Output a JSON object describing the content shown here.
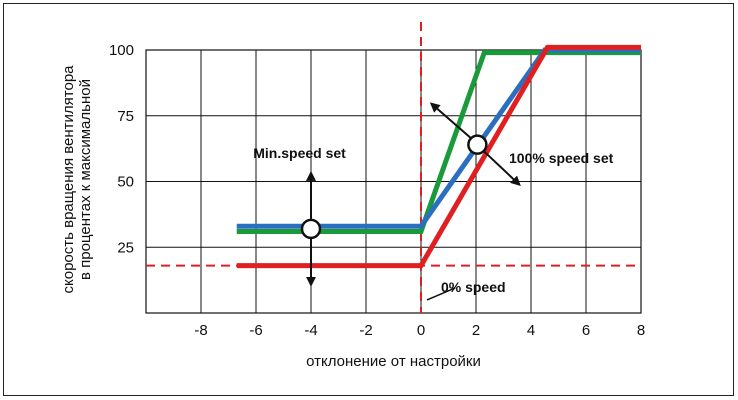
{
  "chart_data": {
    "type": "line",
    "xlabel": "отклонение от настройки",
    "ylabel_lines": [
      "скорость вращения вентилятора",
      "в процентах к максимальной"
    ],
    "xlim": [
      -10,
      8
    ],
    "ylim": [
      0,
      100
    ],
    "x_ticks": [
      -8,
      -6,
      -4,
      -2,
      0,
      2,
      4,
      6,
      8
    ],
    "y_ticks": [
      25,
      50,
      75,
      100
    ],
    "grid": true,
    "series": [
      {
        "color": "#1a9a3a",
        "points": [
          [
            -6.7,
            31
          ],
          [
            0,
            31
          ],
          [
            2.3,
            99
          ],
          [
            8,
            99
          ]
        ]
      },
      {
        "color": "#2a6fc0",
        "points": [
          [
            -6.7,
            33
          ],
          [
            0,
            33
          ],
          [
            4.5,
            100
          ],
          [
            8,
            100
          ]
        ]
      },
      {
        "color": "#e02020",
        "points": [
          [
            -6.7,
            18
          ],
          [
            0,
            18
          ],
          [
            4.6,
            101
          ],
          [
            8,
            101
          ]
        ]
      }
    ],
    "reference_lines": {
      "horizontal_y": 18,
      "vertical_x": 0,
      "color": "#e02020",
      "style": "dashed"
    },
    "annotations": [
      {
        "text": "Min.speed set",
        "x": -6.1,
        "y": 59,
        "anchor": "start"
      },
      {
        "text": "100% speed set",
        "x": 3.2,
        "y": 57,
        "anchor": "start"
      },
      {
        "text": "0% speed",
        "x": 1.9,
        "y": 8,
        "anchor": "middle"
      }
    ],
    "markers": [
      {
        "x": -4,
        "y": 32,
        "arrows": "vertical"
      },
      {
        "x": 2.05,
        "y": 64,
        "arrows": "diagonal"
      }
    ]
  }
}
